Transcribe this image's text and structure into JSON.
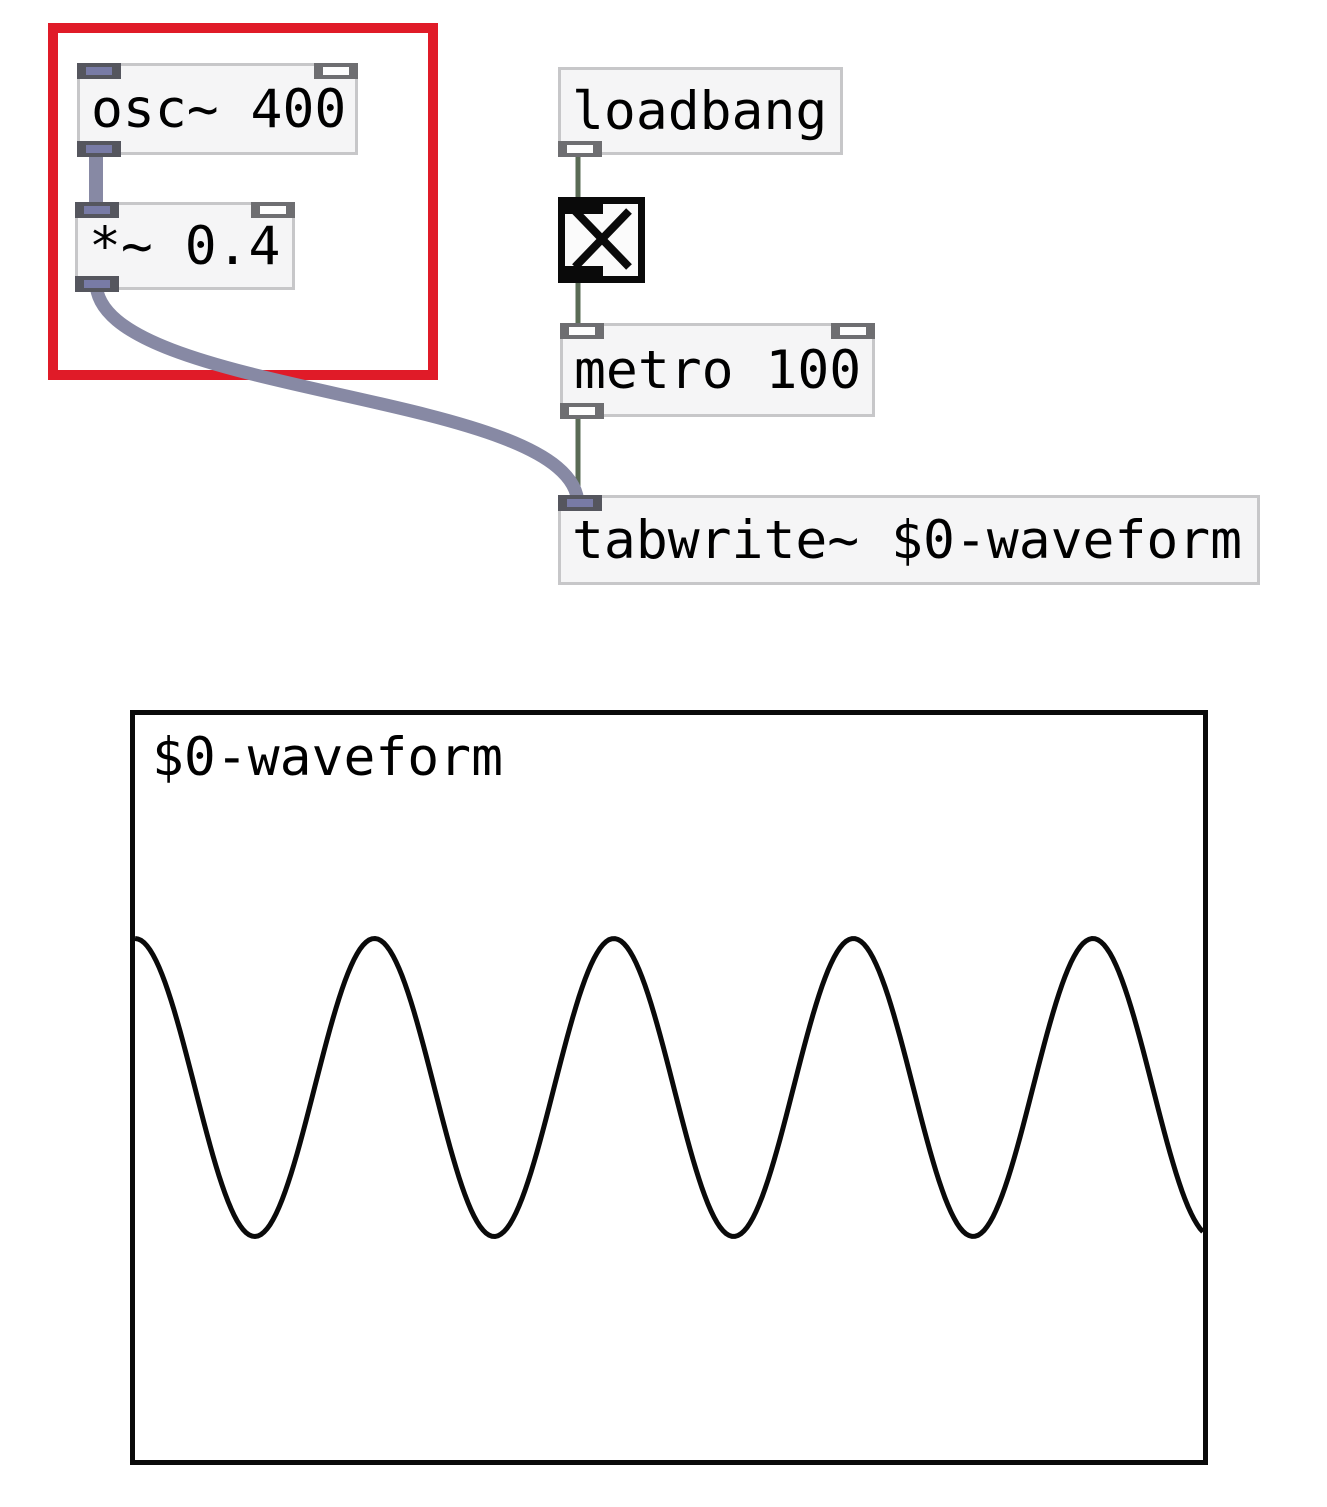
{
  "patch": {
    "boxes": {
      "osc": {
        "label": "osc~ 400"
      },
      "mul": {
        "label": "*~ 0.4"
      },
      "loadbang": {
        "label": "loadbang"
      },
      "metro": {
        "label": "metro 100"
      },
      "tabwrite": {
        "label": "tabwrite~ $0-waveform"
      }
    },
    "toggle": {
      "checked": true
    },
    "connections": [
      {
        "from": "osc~ 400 outlet 0",
        "to": "*~ 0.4 inlet 0",
        "kind": "signal"
      },
      {
        "from": "*~ 0.4 outlet 0",
        "to": "tabwrite~ $0-waveform inlet 0",
        "kind": "signal"
      },
      {
        "from": "loadbang outlet 0",
        "to": "toggle inlet 0",
        "kind": "control"
      },
      {
        "from": "toggle outlet 0",
        "to": "metro 100 inlet 0",
        "kind": "control"
      },
      {
        "from": "metro 100 outlet 0",
        "to": "tabwrite~ $0-waveform inlet 0",
        "kind": "control"
      }
    ],
    "highlight": {
      "shape": "rectangle",
      "color": "#e01b28",
      "around": [
        "osc~ 400",
        "*~ 0.4"
      ]
    }
  },
  "graph": {
    "label": "$0-waveform"
  },
  "chart_data": {
    "type": "line",
    "title": "$0-waveform",
    "series": [
      {
        "name": "$0-waveform",
        "waveform": "sine",
        "amplitude": 0.4,
        "cycles_visible": 4.46,
        "phase_at_left_edge": "positive peak",
        "y_range": [
          -1,
          1
        ]
      }
    ],
    "x_axis": {
      "label": "",
      "ticks": []
    },
    "y_axis": {
      "label": "",
      "ticks": []
    },
    "grid": false,
    "legend": false
  },
  "colors": {
    "highlight_red": "#e01b28",
    "box_fill": "#f5f5f6",
    "box_border": "#c7c7c9",
    "signal_cord": "#8789a4",
    "signal_nub_stripe": "#787ba6",
    "control_cord": "#5a6b55",
    "nub_gray": "#6e6e71",
    "graph_stroke": "#0a0a0a"
  }
}
